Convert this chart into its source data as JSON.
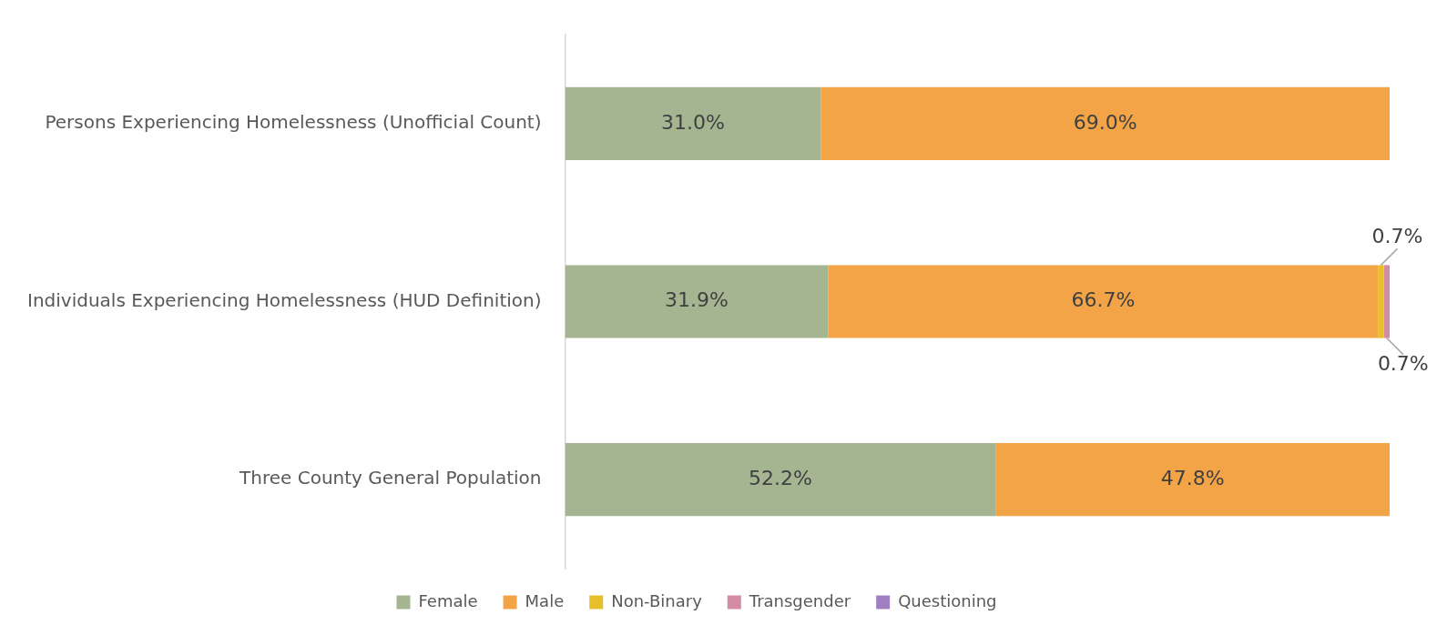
{
  "chart_data": {
    "type": "bar",
    "orientation": "horizontal",
    "stacked": true,
    "grid": false,
    "legend": "bottom",
    "tick_labels": "y",
    "categories": [
      "Persons Experiencing Homelessness (Unofficial Count)",
      "Individuals Experiencing Homelessness (HUD Definition)",
      "Three County General Population"
    ],
    "series": [
      {
        "name": "Female",
        "color": "#a5b592",
        "values": [
          31.0,
          31.9,
          52.2
        ],
        "value_labels": [
          "31.0%",
          "31.9%",
          "52.2%"
        ]
      },
      {
        "name": "Male",
        "color": "#f3a447",
        "values": [
          69.0,
          66.7,
          47.8
        ],
        "value_labels": [
          "69.0%",
          "66.7%",
          "47.8%"
        ]
      },
      {
        "name": "Non-Binary",
        "color": "#e6c02a",
        "values": [
          null,
          0.7,
          null
        ],
        "value_labels": [
          null,
          "0.7%",
          null
        ]
      },
      {
        "name": "Transgender",
        "color": "#d48ba3",
        "values": [
          null,
          0.7,
          null
        ],
        "value_labels": [
          null,
          "0.7%",
          null
        ]
      },
      {
        "name": "Questioning",
        "color": "#9f7fc2",
        "values": [
          null,
          null,
          null
        ]
      }
    ]
  }
}
